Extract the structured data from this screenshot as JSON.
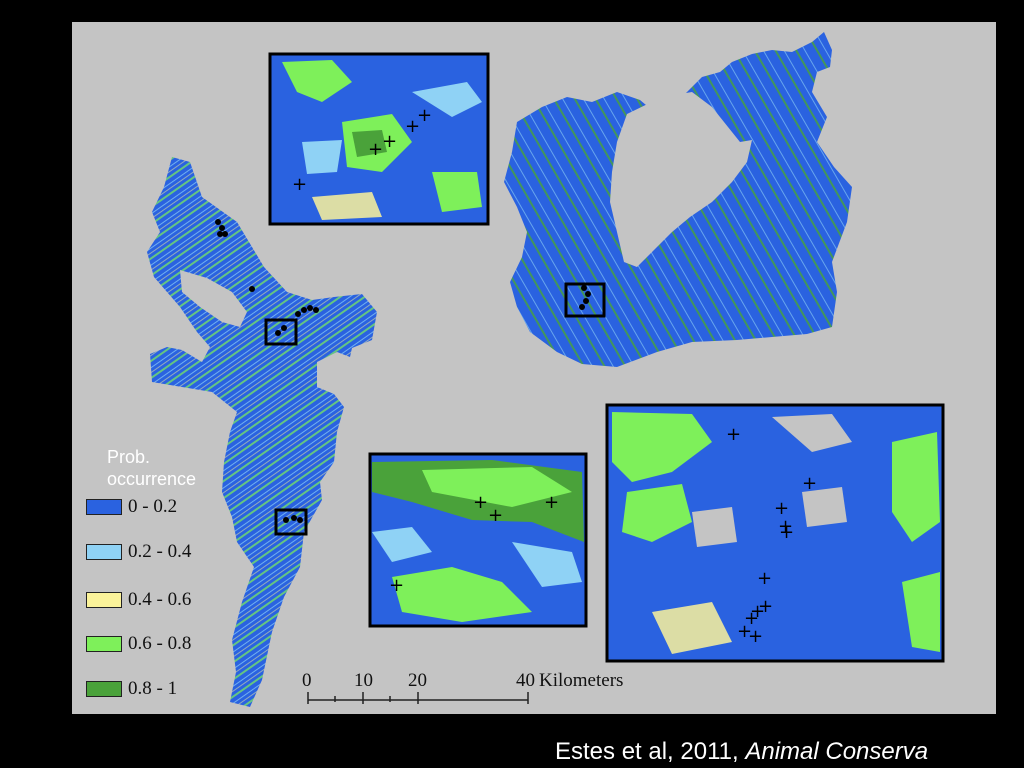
{
  "legend": {
    "title": "Prob. occurrence",
    "items": [
      {
        "label": "0 - 0.2",
        "color": "#2a62e0"
      },
      {
        "label": "0.2 - 0.4",
        "color": "#8fd2f5"
      },
      {
        "label": "0.4 - 0.6",
        "color": "#fbf39a"
      },
      {
        "label": "0.6 - 0.8",
        "color": "#7ef05a"
      },
      {
        "label": "0.8 - 1",
        "color": "#4aa23a"
      }
    ]
  },
  "scale_bar": {
    "ticks": [
      "0",
      "10",
      "20",
      "40"
    ],
    "unit": "Kilometers"
  },
  "citation": {
    "authors": "Estes et al, 2011,",
    "journal": "Animal Conserva"
  },
  "colors": {
    "background": "#000000",
    "map_background": "#c4c4c4",
    "inset_border": "#000000"
  }
}
